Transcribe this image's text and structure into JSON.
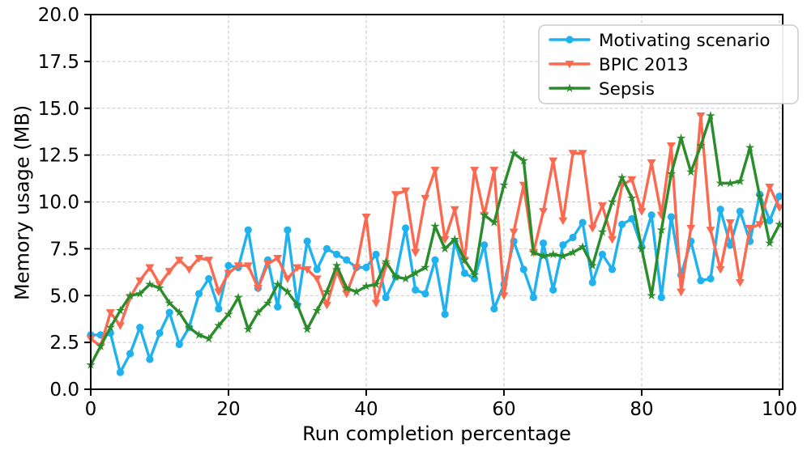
{
  "chart_data": {
    "type": "line",
    "title": "",
    "xlabel": "Run completion percentage",
    "ylabel": "Memory usage (MB)",
    "xlim": [
      0,
      100
    ],
    "ylim": [
      0,
      20
    ],
    "xticks": [
      0,
      20,
      40,
      60,
      80,
      100
    ],
    "yticks": [
      0,
      2.5,
      5,
      7.5,
      10,
      12.5,
      15,
      17.5,
      20
    ],
    "grid": true,
    "grid_style": "dashed",
    "legend_position": "upper right",
    "points_per_series": 71,
    "x_sampling": "uniform from 0 to 100 percent, 71 points per series",
    "series": [
      {
        "name": "Motivating scenario",
        "color": "#1fb2ee",
        "marker": "circle",
        "values": [
          2.9,
          2.9,
          3.0,
          0.9,
          1.9,
          3.3,
          1.6,
          3.0,
          4.1,
          2.4,
          3.3,
          5.1,
          5.9,
          4.3,
          6.6,
          6.5,
          8.5,
          5.4,
          6.9,
          4.4,
          8.5,
          4.5,
          7.9,
          6.4,
          7.5,
          7.2,
          6.9,
          6.5,
          6.5,
          7.2,
          4.9,
          6.0,
          8.6,
          5.3,
          5.1,
          6.9,
          4.0,
          7.9,
          6.2,
          5.9,
          7.7,
          4.3,
          5.6,
          7.9,
          6.4,
          4.9,
          7.8,
          5.3,
          7.7,
          8.1,
          8.9,
          5.7,
          7.2,
          6.4,
          8.8,
          9.1,
          7.6,
          9.3,
          4.9,
          9.2,
          6.1,
          7.9,
          5.8,
          5.9,
          9.6,
          7.7,
          9.5,
          7.9,
          10.4,
          9.0,
          10.3
        ]
      },
      {
        "name": "BPIC 2013",
        "color": "#fb6a50",
        "marker": "triangle-down",
        "values": [
          2.7,
          2.3,
          4.1,
          3.4,
          4.9,
          5.8,
          6.5,
          5.6,
          6.3,
          6.9,
          6.4,
          7.0,
          6.9,
          5.2,
          6.2,
          6.6,
          6.6,
          5.4,
          6.7,
          7.0,
          5.9,
          6.5,
          6.4,
          5.9,
          4.5,
          6.3,
          5.1,
          6.5,
          9.2,
          4.6,
          6.6,
          10.4,
          10.6,
          7.3,
          10.2,
          11.7,
          8.0,
          9.6,
          6.9,
          11.7,
          9.3,
          11.7,
          5.0,
          8.4,
          10.9,
          7.3,
          9.5,
          12.2,
          9.0,
          12.6,
          12.6,
          8.6,
          9.8,
          8.0,
          10.9,
          11.2,
          9.5,
          12.1,
          9.3,
          13.0,
          5.2,
          8.6,
          14.6,
          8.5,
          6.4,
          8.9,
          5.7,
          8.6,
          8.8,
          10.8,
          9.7
        ]
      },
      {
        "name": "Sepsis",
        "color": "#2b8c2b",
        "marker": "star",
        "values": [
          1.3,
          2.3,
          3.3,
          4.2,
          5.0,
          5.1,
          5.6,
          5.4,
          4.6,
          4.1,
          3.3,
          2.9,
          2.7,
          3.4,
          4.0,
          4.9,
          3.2,
          4.1,
          4.6,
          5.6,
          5.2,
          4.5,
          3.2,
          4.2,
          5.2,
          6.6,
          5.4,
          5.2,
          5.5,
          5.6,
          6.8,
          6.0,
          5.9,
          6.2,
          6.5,
          8.7,
          7.5,
          8.0,
          6.9,
          6.1,
          9.3,
          8.9,
          10.9,
          12.6,
          12.2,
          7.3,
          7.1,
          7.2,
          7.1,
          7.3,
          7.6,
          6.6,
          8.4,
          10.0,
          11.3,
          10.2,
          7.5,
          5.0,
          8.5,
          11.5,
          13.4,
          11.6,
          13.0,
          14.6,
          11.0,
          11.0,
          11.1,
          12.9,
          10.3,
          7.8,
          8.8
        ]
      }
    ]
  },
  "style": {
    "grid_color": "#c9c9c9",
    "spine_color": "#000000",
    "text_color": "#000000",
    "legend_border_color": "#cccccc",
    "background": "#ffffff"
  }
}
